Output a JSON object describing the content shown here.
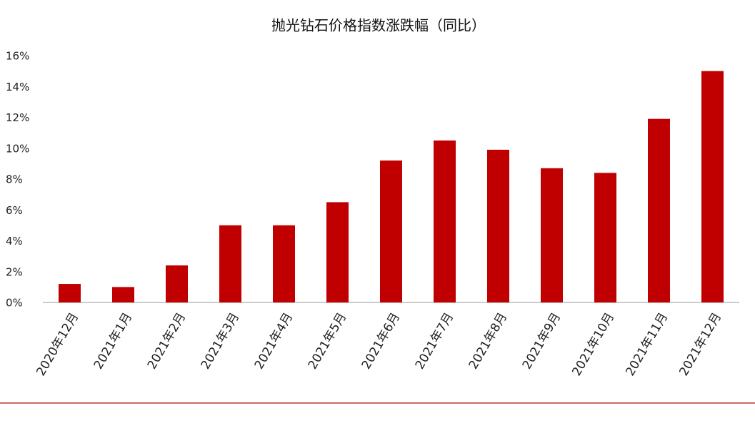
{
  "chart_data": {
    "type": "bar",
    "title": "抛光钻石价格指数涨跌幅（同比）",
    "categories": [
      "2020年12月",
      "2021年1月",
      "2021年2月",
      "2021年3月",
      "2021年4月",
      "2021年5月",
      "2021年6月",
      "2021年7月",
      "2021年8月",
      "2021年9月",
      "2021年10月",
      "2021年11月",
      "2021年12月"
    ],
    "values": [
      1.2,
      1.0,
      2.4,
      5.0,
      5.0,
      6.5,
      9.2,
      10.5,
      9.9,
      8.7,
      8.4,
      11.9,
      15.0
    ],
    "color": "#c00000",
    "ylim": [
      0,
      16
    ],
    "yticks": [
      {
        "value": 0,
        "label": "0%"
      },
      {
        "value": 2,
        "label": "2%"
      },
      {
        "value": 4,
        "label": "4%"
      },
      {
        "value": 6,
        "label": "6%"
      },
      {
        "value": 8,
        "label": "8%"
      },
      {
        "value": 10,
        "label": "10%"
      },
      {
        "value": 12,
        "label": "12%"
      },
      {
        "value": 14,
        "label": "14%"
      },
      {
        "value": 16,
        "label": "16%"
      }
    ],
    "grid": false
  }
}
